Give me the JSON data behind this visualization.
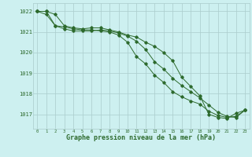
{
  "line1": [
    1022,
    1022,
    1021.85,
    1021.3,
    1021.2,
    1021.15,
    1021.2,
    1021.2,
    1021.1,
    1021.0,
    1020.85,
    1020.75,
    1020.5,
    1020.3,
    1020.0,
    1019.6,
    1018.8,
    1018.35,
    1017.9,
    1017.0,
    1016.85,
    1016.8,
    1017.05,
    1017.2
  ],
  "line2": [
    1022,
    1021.85,
    1021.3,
    1021.15,
    1021.05,
    1021.05,
    1021.05,
    1021.1,
    1021.05,
    1020.95,
    1020.8,
    1020.55,
    1020.15,
    1019.55,
    1019.2,
    1018.75,
    1018.4,
    1018.1,
    1017.8,
    1017.45,
    1017.1,
    1016.9,
    1016.85,
    1017.2
  ],
  "line3": [
    1022,
    1022,
    1021.3,
    1021.25,
    1021.15,
    1021.1,
    1021.1,
    1021.05,
    1021.0,
    1020.85,
    1020.5,
    1019.8,
    1019.45,
    1018.9,
    1018.55,
    1018.1,
    1017.85,
    1017.65,
    1017.5,
    1017.15,
    1016.95,
    1016.85,
    1016.9,
    1017.2
  ],
  "x": [
    0,
    1,
    2,
    3,
    4,
    5,
    6,
    7,
    8,
    9,
    10,
    11,
    12,
    13,
    14,
    15,
    16,
    17,
    18,
    19,
    20,
    21,
    22,
    23
  ],
  "line_color": "#2d6a2d",
  "bg_color": "#cdf0f0",
  "grid_color": "#aacccc",
  "ylabel_ticks": [
    1017,
    1018,
    1019,
    1020,
    1021,
    1022
  ],
  "xlabel_ticks": [
    0,
    1,
    2,
    3,
    4,
    5,
    6,
    7,
    8,
    9,
    10,
    11,
    12,
    13,
    14,
    15,
    16,
    17,
    18,
    19,
    20,
    21,
    22,
    23
  ],
  "xlabel": "Graphe pression niveau de la mer (hPa)",
  "ylim": [
    1016.3,
    1022.4
  ],
  "xlim": [
    -0.5,
    23.5
  ]
}
